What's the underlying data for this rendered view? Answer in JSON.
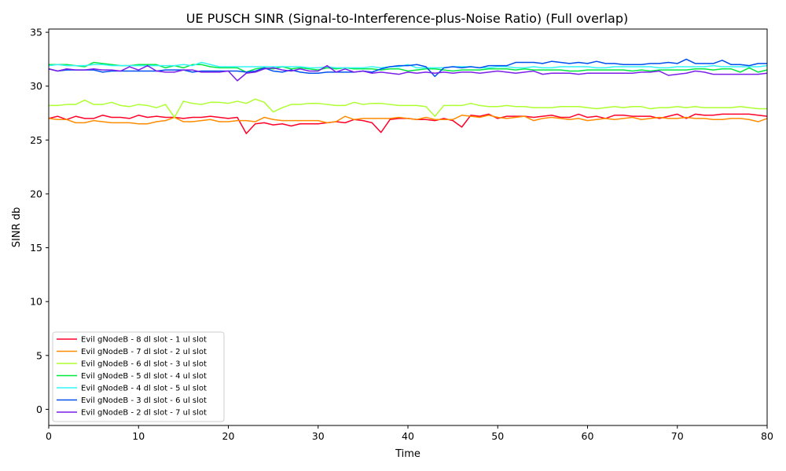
{
  "chart_data": {
    "type": "line",
    "title": "UE PUSCH SINR (Signal-to-Interference-plus-Noise Ratio) (Full overlap)",
    "xlabel": "Time",
    "ylabel": "SINR db",
    "xlim": [
      0,
      80
    ],
    "ylim": [
      -1.5,
      35.3
    ],
    "xticks": [
      0,
      10,
      20,
      30,
      40,
      50,
      60,
      70,
      80
    ],
    "yticks": [
      0,
      5,
      10,
      15,
      20,
      25,
      30,
      35
    ],
    "grid": false,
    "legend_position": "lower-left",
    "x": [
      0,
      1,
      2,
      3,
      4,
      5,
      6,
      7,
      8,
      9,
      10,
      11,
      12,
      13,
      14,
      15,
      16,
      17,
      18,
      19,
      20,
      21,
      22,
      23,
      24,
      25,
      26,
      27,
      28,
      29,
      30,
      31,
      32,
      33,
      34,
      35,
      36,
      37,
      38,
      39,
      40,
      41,
      42,
      43,
      44,
      45,
      46,
      47,
      48,
      49,
      50,
      51,
      52,
      53,
      54,
      55,
      56,
      57,
      58,
      59,
      60,
      61,
      62,
      63,
      64,
      65,
      66,
      67,
      68,
      69,
      70,
      71,
      72,
      73,
      74,
      75,
      76,
      77,
      78,
      79,
      80
    ],
    "series": [
      {
        "name": "Evil gNodeB - 8 dl slot - 1 ul slot",
        "color": "#ff0029",
        "values": [
          27.0,
          27.2,
          26.9,
          27.2,
          27.0,
          27.0,
          27.3,
          27.1,
          27.1,
          27.0,
          27.3,
          27.1,
          27.2,
          27.1,
          27.1,
          27.0,
          27.1,
          27.1,
          27.2,
          27.1,
          27.0,
          27.1,
          25.6,
          26.5,
          26.6,
          26.4,
          26.5,
          26.3,
          26.5,
          26.5,
          26.5,
          26.6,
          26.7,
          26.6,
          26.9,
          26.8,
          26.6,
          25.7,
          26.9,
          27.0,
          27.0,
          26.9,
          26.9,
          26.8,
          27.0,
          26.8,
          26.2,
          27.3,
          27.2,
          27.4,
          27.0,
          27.2,
          27.2,
          27.2,
          27.1,
          27.2,
          27.3,
          27.1,
          27.1,
          27.4,
          27.1,
          27.2,
          27.0,
          27.3,
          27.3,
          27.2,
          27.2,
          27.2,
          27.0,
          27.2,
          27.4,
          27.0,
          27.4,
          27.3,
          27.3,
          27.4,
          27.4,
          27.4,
          27.4,
          27.3,
          27.2
        ]
      },
      {
        "name": "Evil gNodeB - 7 dl slot - 2 ul slot",
        "color": "#ff8c00",
        "values": [
          27.0,
          26.9,
          26.9,
          26.6,
          26.6,
          26.8,
          26.7,
          26.6,
          26.6,
          26.6,
          26.5,
          26.5,
          26.7,
          26.8,
          27.1,
          26.7,
          26.7,
          26.8,
          26.9,
          26.7,
          26.7,
          26.8,
          26.8,
          26.7,
          27.1,
          26.9,
          26.8,
          26.8,
          26.8,
          26.8,
          26.8,
          26.6,
          26.7,
          27.2,
          26.9,
          27.0,
          27.0,
          27.0,
          27.0,
          27.1,
          27.0,
          26.9,
          27.1,
          26.9,
          26.9,
          26.9,
          27.3,
          27.2,
          27.1,
          27.3,
          27.1,
          27.0,
          27.1,
          27.2,
          26.8,
          27.0,
          27.1,
          27.0,
          26.9,
          27.0,
          26.8,
          26.9,
          27.0,
          26.9,
          27.0,
          27.1,
          26.9,
          27.0,
          27.1,
          27.0,
          27.0,
          27.1,
          27.0,
          27.0,
          26.9,
          26.9,
          27.0,
          27.0,
          26.9,
          26.7,
          27.0
        ]
      },
      {
        "name": "Evil gNodeB - 6 dl slot - 3 ul slot",
        "color": "#adff2f",
        "values": [
          28.2,
          28.2,
          28.3,
          28.3,
          28.7,
          28.3,
          28.3,
          28.5,
          28.2,
          28.1,
          28.3,
          28.2,
          28.0,
          28.3,
          27.1,
          28.6,
          28.4,
          28.3,
          28.5,
          28.5,
          28.4,
          28.6,
          28.4,
          28.8,
          28.5,
          27.6,
          28.0,
          28.3,
          28.3,
          28.4,
          28.4,
          28.3,
          28.2,
          28.2,
          28.5,
          28.3,
          28.4,
          28.4,
          28.3,
          28.2,
          28.2,
          28.2,
          28.1,
          27.2,
          28.2,
          28.2,
          28.2,
          28.4,
          28.2,
          28.1,
          28.1,
          28.2,
          28.1,
          28.1,
          28.0,
          28.0,
          28.0,
          28.1,
          28.1,
          28.1,
          28.0,
          27.9,
          28.0,
          28.1,
          28.0,
          28.1,
          28.1,
          27.9,
          28.0,
          28.0,
          28.1,
          28.0,
          28.1,
          28.0,
          28.0,
          28.0,
          28.0,
          28.1,
          28.0,
          27.9,
          27.9
        ]
      },
      {
        "name": "Evil gNodeB - 5 dl slot - 4 ul slot",
        "color": "#00e83f",
        "values": [
          32.0,
          32.0,
          32.0,
          31.9,
          31.8,
          32.2,
          32.1,
          32.0,
          31.9,
          31.9,
          32.0,
          32.0,
          32.0,
          31.7,
          31.9,
          31.7,
          32.0,
          32.0,
          31.8,
          31.7,
          31.7,
          31.7,
          31.3,
          31.6,
          31.7,
          31.6,
          31.8,
          31.6,
          31.7,
          31.6,
          31.5,
          31.7,
          31.6,
          31.7,
          31.6,
          31.6,
          31.6,
          31.5,
          31.6,
          31.6,
          31.4,
          31.5,
          31.6,
          31.6,
          31.5,
          31.4,
          31.5,
          31.5,
          31.5,
          31.6,
          31.6,
          31.6,
          31.5,
          31.6,
          31.5,
          31.5,
          31.5,
          31.5,
          31.4,
          31.4,
          31.5,
          31.5,
          31.5,
          31.5,
          31.5,
          31.4,
          31.5,
          31.4,
          31.5,
          31.5,
          31.5,
          31.5,
          31.6,
          31.6,
          31.5,
          31.6,
          31.6,
          31.3,
          31.7,
          31.3,
          31.5
        ]
      },
      {
        "name": "Evil gNodeB - 4 dl slot - 5 ul slot",
        "color": "#33f5f5",
        "values": [
          31.9,
          32.0,
          31.9,
          31.9,
          31.9,
          32.0,
          32.0,
          31.9,
          31.9,
          31.9,
          31.9,
          31.9,
          31.9,
          31.9,
          31.9,
          32.0,
          31.9,
          32.2,
          32.0,
          31.8,
          31.8,
          31.8,
          31.8,
          31.8,
          31.8,
          31.8,
          31.8,
          31.8,
          31.8,
          31.7,
          31.7,
          31.8,
          31.7,
          31.7,
          31.7,
          31.7,
          31.8,
          31.7,
          31.8,
          31.8,
          32.0,
          31.7,
          31.7,
          31.7,
          31.7,
          31.8,
          31.8,
          31.8,
          31.7,
          31.7,
          31.8,
          31.8,
          31.7,
          31.7,
          31.8,
          31.7,
          31.7,
          31.8,
          31.8,
          31.8,
          31.8,
          31.7,
          31.7,
          31.8,
          31.8,
          31.8,
          31.8,
          31.8,
          31.7,
          31.7,
          31.8,
          31.8,
          31.8,
          31.8,
          31.9,
          31.8,
          31.8,
          31.8,
          31.8,
          31.8,
          31.9
        ]
      },
      {
        "name": "Evil gNodeB - 3 dl slot - 6 ul slot",
        "color": "#0050ef",
        "values": [
          31.6,
          31.4,
          31.5,
          31.5,
          31.5,
          31.5,
          31.3,
          31.4,
          31.4,
          31.4,
          31.4,
          31.4,
          31.4,
          31.5,
          31.5,
          31.5,
          31.3,
          31.4,
          31.4,
          31.4,
          31.4,
          31.4,
          31.3,
          31.4,
          31.7,
          31.4,
          31.3,
          31.5,
          31.3,
          31.2,
          31.2,
          31.3,
          31.3,
          31.3,
          31.3,
          31.4,
          31.3,
          31.6,
          31.8,
          31.9,
          31.9,
          32.0,
          31.8,
          30.9,
          31.7,
          31.8,
          31.7,
          31.8,
          31.7,
          31.9,
          31.9,
          31.9,
          32.2,
          32.2,
          32.2,
          32.1,
          32.3,
          32.2,
          32.1,
          32.2,
          32.1,
          32.3,
          32.1,
          32.1,
          32.0,
          32.0,
          32.0,
          32.1,
          32.1,
          32.2,
          32.1,
          32.5,
          32.1,
          32.1,
          32.1,
          32.4,
          32.0,
          32.0,
          31.9,
          32.1,
          32.1
        ]
      },
      {
        "name": "Evil gNodeB - 2 dl slot - 7 ul slot",
        "color": "#7a1fe8",
        "values": [
          31.6,
          31.4,
          31.6,
          31.5,
          31.5,
          31.6,
          31.5,
          31.5,
          31.4,
          31.8,
          31.5,
          31.9,
          31.4,
          31.3,
          31.3,
          31.5,
          31.5,
          31.3,
          31.3,
          31.3,
          31.4,
          30.5,
          31.2,
          31.3,
          31.6,
          31.7,
          31.5,
          31.4,
          31.6,
          31.4,
          31.4,
          31.9,
          31.3,
          31.6,
          31.3,
          31.4,
          31.2,
          31.3,
          31.2,
          31.1,
          31.3,
          31.2,
          31.3,
          31.2,
          31.3,
          31.2,
          31.3,
          31.3,
          31.2,
          31.3,
          31.4,
          31.3,
          31.2,
          31.3,
          31.4,
          31.1,
          31.2,
          31.2,
          31.2,
          31.1,
          31.2,
          31.2,
          31.2,
          31.2,
          31.2,
          31.2,
          31.3,
          31.3,
          31.4,
          31.0,
          31.1,
          31.2,
          31.4,
          31.3,
          31.1,
          31.1,
          31.1,
          31.1,
          31.1,
          31.1,
          31.2
        ]
      }
    ]
  }
}
